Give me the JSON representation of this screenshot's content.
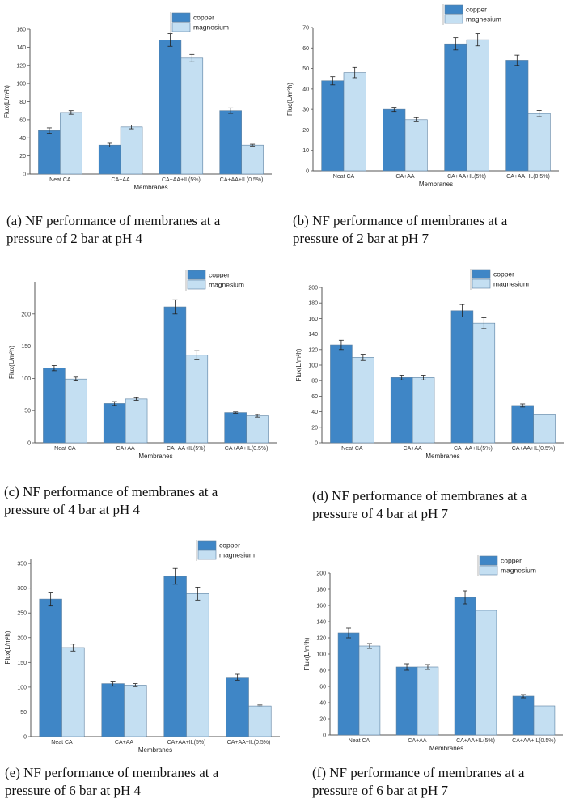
{
  "colors": {
    "copper": "#3f86c6",
    "magnesium": "#c4dff2",
    "axis": "#555555",
    "error": "#222222"
  },
  "chart_data": [
    {
      "type": "bar",
      "id": "a",
      "categories": [
        "Neat CA",
        "CA+AA",
        "CA+AA+IL(5%)",
        "CA+AA+IL(0.5%)"
      ],
      "series": [
        {
          "name": "copper",
          "values": [
            48,
            32,
            148,
            70
          ],
          "errors": [
            3,
            2,
            7,
            3
          ]
        },
        {
          "name": "magnesium",
          "values": [
            68,
            52,
            128,
            32
          ],
          "errors": [
            2,
            2,
            4,
            1
          ]
        }
      ],
      "xlabel": "Membranes",
      "ylabel": "Flux(L/m²h)",
      "ylim": [
        0,
        160
      ],
      "yticks": [
        0,
        20,
        40,
        60,
        80,
        100,
        120,
        140,
        160
      ],
      "caption": "(a) NF performance of membranes at a\npressure of 2 bar at pH 4"
    },
    {
      "type": "bar",
      "id": "b",
      "categories": [
        "Neat CA",
        "CA+AA",
        "CA+AA+IL(5%)",
        "CA+AA+IL(0.5%)"
      ],
      "series": [
        {
          "name": "copper",
          "values": [
            44,
            30,
            62,
            54
          ],
          "errors": [
            2,
            1,
            3,
            2.5
          ]
        },
        {
          "name": "magnesium",
          "values": [
            48,
            25,
            64,
            28
          ],
          "errors": [
            2.5,
            1,
            3,
            1.5
          ]
        }
      ],
      "xlabel": "Membranes",
      "ylabel": "Fluc(L/m²h)",
      "ylim": [
        0,
        70
      ],
      "yticks": [
        0,
        10,
        20,
        30,
        40,
        50,
        60,
        70
      ],
      "caption": "(b) NF performance of membranes at a\npressure of 2 bar at pH 7"
    },
    {
      "type": "bar",
      "id": "c",
      "categories": [
        "Neat CA",
        "CA+AA",
        "CA+AA+IL(5%)",
        "CA+AA+IL(0.5%)"
      ],
      "series": [
        {
          "name": "copper",
          "values": [
            116,
            61,
            211,
            47
          ],
          "errors": [
            4,
            3,
            11,
            1
          ]
        },
        {
          "name": "magnesium",
          "values": [
            99,
            68,
            136,
            42
          ],
          "errors": [
            3,
            2,
            7,
            2
          ]
        }
      ],
      "xlabel": "Membranes",
      "ylabel": "Flux(L/m²h)",
      "ylim": [
        0,
        250
      ],
      "yticks": [
        0,
        50,
        100,
        150,
        200
      ],
      "caption": "(c) NF performance of membranes at a\npressure of 4 bar at pH 4"
    },
    {
      "type": "bar",
      "id": "d",
      "categories": [
        "Neat CA",
        "CA+AA",
        "CA+AA+IL(5%)",
        "CA+AA+IL(0.5%)"
      ],
      "series": [
        {
          "name": "copper",
          "values": [
            126,
            84,
            170,
            48
          ],
          "errors": [
            6,
            3,
            8,
            2
          ]
        },
        {
          "name": "magnesium",
          "values": [
            110,
            84,
            154,
            36
          ],
          "errors": [
            4,
            3,
            7,
            0
          ]
        }
      ],
      "xlabel": "Membranes",
      "ylabel": "Flux(L/m²h)",
      "ylim": [
        0,
        200
      ],
      "yticks": [
        0,
        20,
        40,
        60,
        80,
        100,
        120,
        140,
        160,
        180,
        200
      ],
      "caption": "(d) NF performance of membranes at a\npressure of 4 bar at pH 7"
    },
    {
      "type": "bar",
      "id": "e",
      "categories": [
        "Neat CA",
        "CA+AA",
        "CA+AA+IL(5%)",
        "CA+AA+IL(0.5%)"
      ],
      "series": [
        {
          "name": "copper",
          "values": [
            278,
            107,
            324,
            120
          ],
          "errors": [
            14,
            5,
            16,
            6
          ]
        },
        {
          "name": "magnesium",
          "values": [
            180,
            104,
            289,
            62
          ],
          "errors": [
            7,
            3,
            13,
            2
          ]
        }
      ],
      "xlabel": "Membranes",
      "ylabel": "Flux(L/m²h)",
      "ylim": [
        0,
        360
      ],
      "yticks": [
        0,
        50,
        100,
        150,
        200,
        250,
        300,
        350
      ],
      "caption": "(e) NF performance of membranes at a\npressure of 6 bar at pH 4"
    },
    {
      "type": "bar",
      "id": "f",
      "categories": [
        "Neat CA",
        "CA+AA",
        "CA+AA+IL(5%)",
        "CA+AA+IL(0.5%)"
      ],
      "series": [
        {
          "name": "copper",
          "values": [
            126,
            84,
            170,
            48
          ],
          "errors": [
            6,
            4,
            8,
            2
          ]
        },
        {
          "name": "magnesium",
          "values": [
            110,
            84,
            154,
            36
          ],
          "errors": [
            3,
            3,
            0,
            0
          ]
        }
      ],
      "xlabel": "Membranes",
      "ylabel": "Flux(L/m²h)",
      "ylim": [
        0,
        200
      ],
      "yticks": [
        0,
        20,
        40,
        60,
        80,
        100,
        120,
        140,
        160,
        180,
        200
      ],
      "caption": "(f) NF performance of membranes at a\npressure of 6 bar at pH 7"
    }
  ]
}
